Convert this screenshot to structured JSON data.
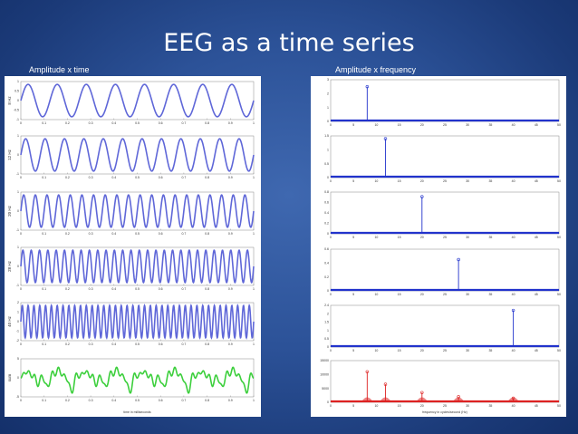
{
  "slide": {
    "title": "EEG as a time series",
    "left_caption": "Amplitude x time",
    "right_caption": "Amplitude x frequency"
  },
  "colors": {
    "sine": "#5f67d8",
    "eeg": "#3ccf3c",
    "spectrum": "#2233cc",
    "spectrum_eeg": "#dd2222"
  },
  "chart_data": [
    {
      "type": "line",
      "panel": "time",
      "xlim": [
        0,
        1
      ],
      "x_ticks": [
        "0",
        "0.1",
        "0.2",
        "0.3",
        "0.4",
        "0.5",
        "0.6",
        "0.7",
        "0.8",
        "0.9",
        "1"
      ],
      "xlabel": "time in milliseconds",
      "series": [
        {
          "name": "8 Hz",
          "frequency_hz": 8,
          "ylim": [
            -1,
            1
          ],
          "y_ticks": [
            "1",
            "0.5",
            "0",
            "-0.5",
            "-1"
          ]
        },
        {
          "name": "12 Hz",
          "frequency_hz": 12,
          "ylim": [
            -1,
            1
          ],
          "y_ticks": [
            "1",
            "0",
            "-1"
          ]
        },
        {
          "name": "20 Hz",
          "frequency_hz": 20,
          "ylim": [
            -1,
            1
          ],
          "y_ticks": [
            "1",
            "0",
            "-1"
          ]
        },
        {
          "name": "28 Hz",
          "frequency_hz": 28,
          "ylim": [
            -1,
            1
          ],
          "y_ticks": [
            "1",
            "0",
            "-1"
          ]
        },
        {
          "name": "40 Hz",
          "frequency_hz": 40,
          "ylim": [
            -2,
            2
          ],
          "y_ticks": [
            "2",
            "1",
            "0",
            "-1",
            "-2"
          ]
        },
        {
          "name": "sum",
          "components_hz": [
            8,
            12,
            20,
            28,
            40
          ],
          "ylim": [
            -5,
            5
          ],
          "y_ticks": [
            "5",
            "0",
            "-5"
          ]
        }
      ]
    },
    {
      "type": "bar",
      "panel": "frequency",
      "xlim": [
        0,
        50
      ],
      "x_ticks": [
        "0",
        "5",
        "10",
        "15",
        "20",
        "25",
        "30",
        "35",
        "40",
        "45",
        "50"
      ],
      "xlabel": "frequency in cycles/second (Hz)",
      "series": [
        {
          "peaks": [
            [
              8,
              2.5
            ]
          ],
          "ylim": [
            0,
            3
          ],
          "y_ticks": [
            "3",
            "2",
            "1",
            "0"
          ]
        },
        {
          "peaks": [
            [
              12,
              1.4
            ]
          ],
          "ylim": [
            0,
            1.5
          ],
          "y_ticks": [
            "1.5",
            "1",
            "0.5",
            "0"
          ]
        },
        {
          "peaks": [
            [
              20,
              0.8
            ]
          ],
          "ylim": [
            0,
            0.9
          ],
          "y_ticks": [
            "0.8",
            "0.6",
            "0.4",
            "0.2",
            "0"
          ]
        },
        {
          "peaks": [
            [
              28,
              0.45
            ]
          ],
          "ylim": [
            0,
            0.6
          ],
          "y_ticks": [
            "0.6",
            "0.4",
            "0.2",
            "0"
          ]
        },
        {
          "peaks": [
            [
              40,
              2.2
            ]
          ],
          "ylim": [
            0,
            2.5
          ],
          "y_ticks": [
            "2.4",
            "2",
            "1.5",
            "1",
            "0.5",
            "0"
          ]
        },
        {
          "peaks": [
            [
              8,
              11000
            ],
            [
              12,
              6500
            ],
            [
              20,
              3500
            ],
            [
              28,
              2000
            ],
            [
              40,
              1500
            ]
          ],
          "ylim": [
            0,
            15000
          ],
          "y_ticks": [
            "15000",
            "10000",
            "5000",
            "0"
          ]
        }
      ]
    }
  ]
}
